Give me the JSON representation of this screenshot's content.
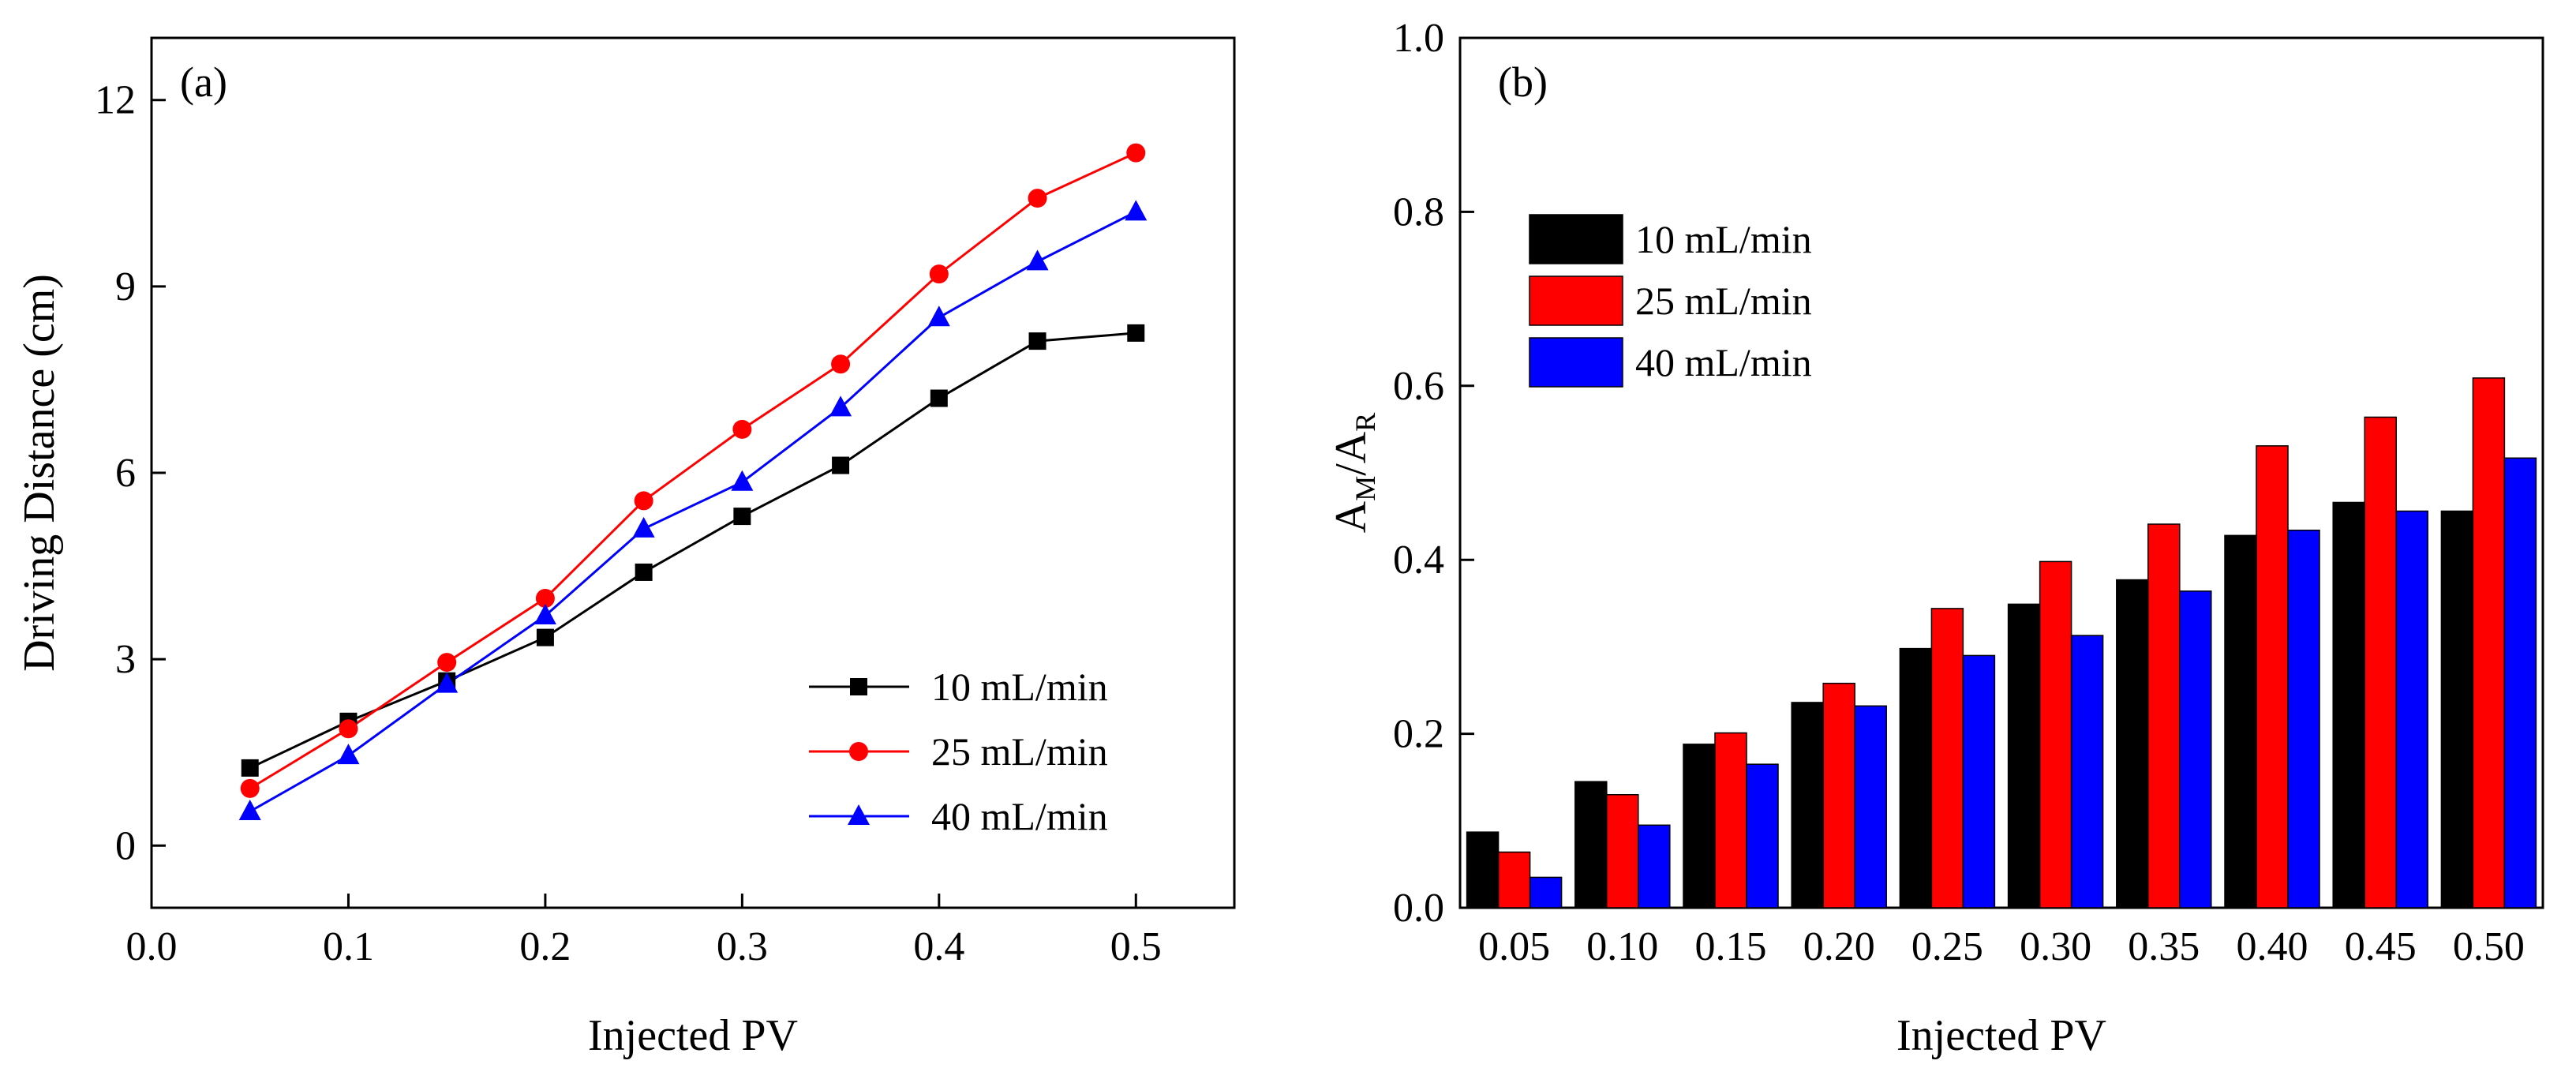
{
  "chart_data": [
    {
      "type": "line",
      "panel_label": "(a)",
      "xlabel": "Injected PV",
      "ylabel": "Driving Distance (cm)",
      "xlim": [
        0.0,
        0.55
      ],
      "ylim": [
        -1,
        13
      ],
      "xticks": [
        "0.0",
        "0.1",
        "0.2",
        "0.3",
        "0.4",
        "0.5"
      ],
      "yticks": [
        "0",
        "3",
        "6",
        "9",
        "12"
      ],
      "legend_position": "lower-right",
      "x": [
        0.05,
        0.1,
        0.15,
        0.2,
        0.25,
        0.3,
        0.35,
        0.4,
        0.45,
        0.5
      ],
      "series": [
        {
          "name": "10 mL/min",
          "color": "#000000",
          "marker": "square",
          "values": [
            1.25,
            2.0,
            2.65,
            3.35,
            4.4,
            5.3,
            6.12,
            7.2,
            8.12,
            8.25
          ]
        },
        {
          "name": "25 mL/min",
          "color": "#ff0000",
          "marker": "circle",
          "values": [
            0.92,
            1.88,
            2.95,
            3.98,
            5.55,
            6.7,
            7.75,
            9.2,
            10.42,
            11.15
          ]
        },
        {
          "name": "40 mL/min",
          "color": "#0000ff",
          "marker": "triangle",
          "values": [
            0.55,
            1.45,
            2.6,
            3.7,
            5.1,
            5.85,
            7.05,
            8.5,
            9.4,
            10.2
          ]
        }
      ]
    },
    {
      "type": "bar",
      "panel_label": "(b)",
      "xlabel": "Injected PV",
      "ylabel_main": "A",
      "ylabel_sub1": "M",
      "ylabel_sep": "/A",
      "ylabel_sub2": "R",
      "ylim": [
        0.0,
        1.0
      ],
      "yticks": [
        "0.0",
        "0.2",
        "0.4",
        "0.6",
        "0.8",
        "1.0"
      ],
      "legend_position": "top-left",
      "categories": [
        "0.05",
        "0.10",
        "0.15",
        "0.20",
        "0.25",
        "0.30",
        "0.35",
        "0.40",
        "0.45",
        "0.50"
      ],
      "series": [
        {
          "name": "10 mL/min",
          "color": "#000000",
          "values": [
            0.087,
            0.145,
            0.188,
            0.236,
            0.298,
            0.349,
            0.377,
            0.428,
            0.466,
            0.456
          ]
        },
        {
          "name": "25 mL/min",
          "color": "#ff0000",
          "values": [
            0.064,
            0.13,
            0.201,
            0.258,
            0.344,
            0.398,
            0.441,
            0.531,
            0.564,
            0.609
          ]
        },
        {
          "name": "40 mL/min",
          "color": "#0000ff",
          "values": [
            0.035,
            0.095,
            0.165,
            0.232,
            0.29,
            0.313,
            0.364,
            0.434,
            0.456,
            0.517
          ]
        }
      ]
    }
  ]
}
